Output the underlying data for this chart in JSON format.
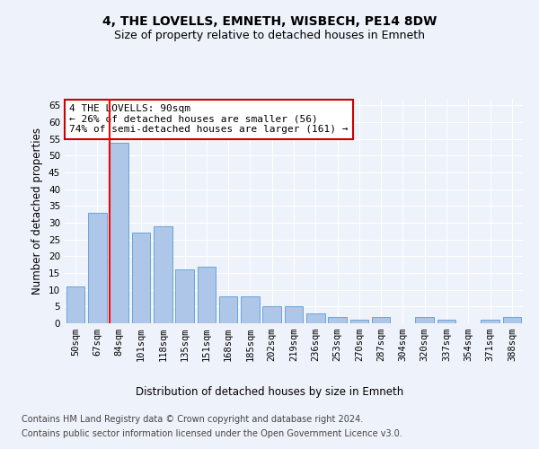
{
  "title": "4, THE LOVELLS, EMNETH, WISBECH, PE14 8DW",
  "subtitle": "Size of property relative to detached houses in Emneth",
  "xlabel": "Distribution of detached houses by size in Emneth",
  "ylabel": "Number of detached properties",
  "categories": [
    "50sqm",
    "67sqm",
    "84sqm",
    "101sqm",
    "118sqm",
    "135sqm",
    "151sqm",
    "168sqm",
    "185sqm",
    "202sqm",
    "219sqm",
    "236sqm",
    "253sqm",
    "270sqm",
    "287sqm",
    "304sqm",
    "320sqm",
    "337sqm",
    "354sqm",
    "371sqm",
    "388sqm"
  ],
  "values": [
    11,
    33,
    54,
    27,
    29,
    16,
    17,
    8,
    8,
    5,
    5,
    3,
    2,
    1,
    2,
    0,
    2,
    1,
    0,
    1,
    2
  ],
  "bar_color": "#aec6e8",
  "bar_edge_color": "#5b9bd5",
  "highlight_bar_index": 2,
  "highlight_color": "#ff0000",
  "annotation_text": "4 THE LOVELLS: 90sqm\n← 26% of detached houses are smaller (56)\n74% of semi-detached houses are larger (161) →",
  "annotation_box_color": "#ffffff",
  "annotation_box_edge": "#cc0000",
  "ylim": [
    0,
    67
  ],
  "yticks": [
    0,
    5,
    10,
    15,
    20,
    25,
    30,
    35,
    40,
    45,
    50,
    55,
    60,
    65
  ],
  "background_color": "#eef2fa",
  "grid_color": "#ffffff",
  "footer_line1": "Contains HM Land Registry data © Crown copyright and database right 2024.",
  "footer_line2": "Contains public sector information licensed under the Open Government Licence v3.0.",
  "title_fontsize": 10,
  "subtitle_fontsize": 9,
  "axis_label_fontsize": 8.5,
  "tick_fontsize": 7.5,
  "footer_fontsize": 7
}
